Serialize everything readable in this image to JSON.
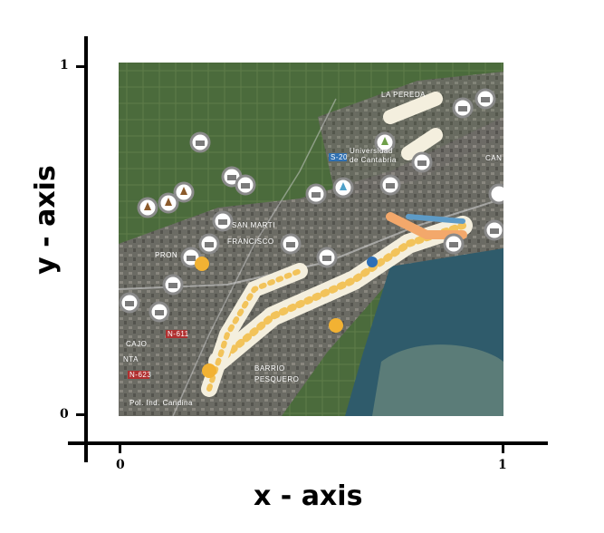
{
  "axes": {
    "x_title": "x - axis",
    "y_title": "y - axis",
    "x_ticks": [
      "0",
      "1"
    ],
    "y_ticks": [
      "0",
      "1"
    ]
  },
  "map": {
    "place_labels": {
      "la_pereda": "LA PEREDA",
      "universidad": "Universidad",
      "de_cantabria": "de Cantabria",
      "san_martin": "SAN MARTI",
      "francisco": "FRANCISCO",
      "pronillo": "PRON",
      "barrio": "BARRIO",
      "pesquero": "PESQUERO",
      "cajo": "CAJO",
      "pol_candina": "Pol. Ind. Candina",
      "cant": "CAN",
      "ronda": "NTA",
      "road_n611": "N-611",
      "road_n623": "N-623",
      "road_s20": "S-20"
    },
    "colors": {
      "water": "#2f5b6b",
      "land": "#5a5f55",
      "vegetation": "#4b6b3c",
      "marker": "#8a8a8a",
      "marker_highlight": "#f2b233"
    },
    "marker_icons": [
      "museum-icon",
      "vase-icon",
      "warrior-icon",
      "tree-icon",
      "bulb-icon"
    ]
  }
}
